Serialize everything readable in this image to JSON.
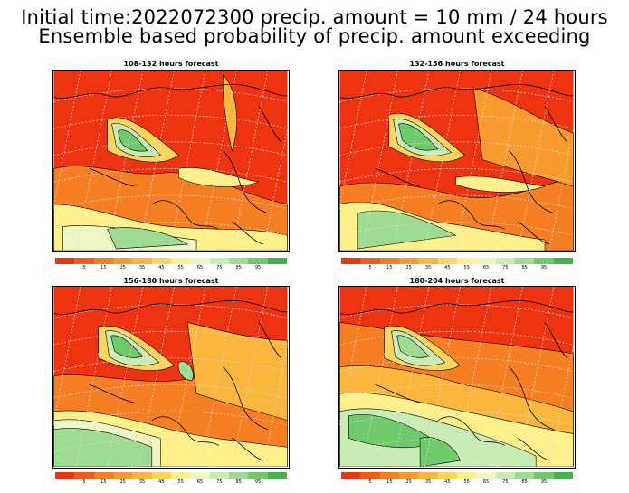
{
  "title": {
    "line1": "Initial time:2022072300 precip. amount = 10 mm / 24 hours",
    "line2": "Ensemble based probability of precip. amount exceeding"
  },
  "panels": [
    {
      "label": "108-132 hours forecast"
    },
    {
      "label": "132-156 hours forecast"
    },
    {
      "label": "156-180 hours forecast"
    },
    {
      "label": "180-204 hours forecast"
    }
  ],
  "colorbar": {
    "colors": [
      "#ee3311",
      "#f25c1a",
      "#f67f24",
      "#f99a2e",
      "#fbb63d",
      "#fdd45c",
      "#fef08a",
      "#eef7c4",
      "#c9ecb4",
      "#9fdc93",
      "#6fca6c",
      "#3fb24a"
    ],
    "labels": [
      "5",
      "15",
      "25",
      "35",
      "45",
      "55",
      "65",
      "75",
      "85",
      "95"
    ]
  }
}
